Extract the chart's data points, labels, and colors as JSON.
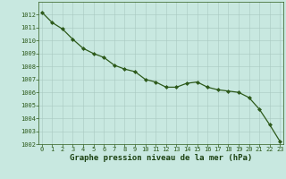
{
  "x": [
    0,
    1,
    2,
    3,
    4,
    5,
    6,
    7,
    8,
    9,
    10,
    11,
    12,
    13,
    14,
    15,
    16,
    17,
    18,
    19,
    20,
    21,
    22,
    23
  ],
  "y": [
    1012.2,
    1011.4,
    1010.9,
    1010.1,
    1009.4,
    1009.0,
    1008.7,
    1008.1,
    1007.8,
    1007.6,
    1007.0,
    1006.8,
    1006.4,
    1006.4,
    1006.7,
    1006.8,
    1006.4,
    1006.2,
    1006.1,
    1006.0,
    1005.6,
    1004.7,
    1003.5,
    1002.2
  ],
  "line_color": "#2d5a1b",
  "marker": "D",
  "marker_size": 2.0,
  "line_width": 0.9,
  "bg_color": "#c8e8e0",
  "grid_color": "#a8c8c0",
  "xlabel": "Graphe pression niveau de la mer (hPa)",
  "xlabel_fontsize": 6.5,
  "xlabel_color": "#1a4010",
  "tick_color": "#2d5a1b",
  "tick_fontsize": 5.0,
  "ylim": [
    1002,
    1013
  ],
  "xlim_min": -0.3,
  "xlim_max": 23.3,
  "yticks": [
    1002,
    1003,
    1004,
    1005,
    1006,
    1007,
    1008,
    1009,
    1010,
    1011,
    1012
  ],
  "xticks": [
    0,
    1,
    2,
    3,
    4,
    5,
    6,
    7,
    8,
    9,
    10,
    11,
    12,
    13,
    14,
    15,
    16,
    17,
    18,
    19,
    20,
    21,
    22,
    23
  ]
}
